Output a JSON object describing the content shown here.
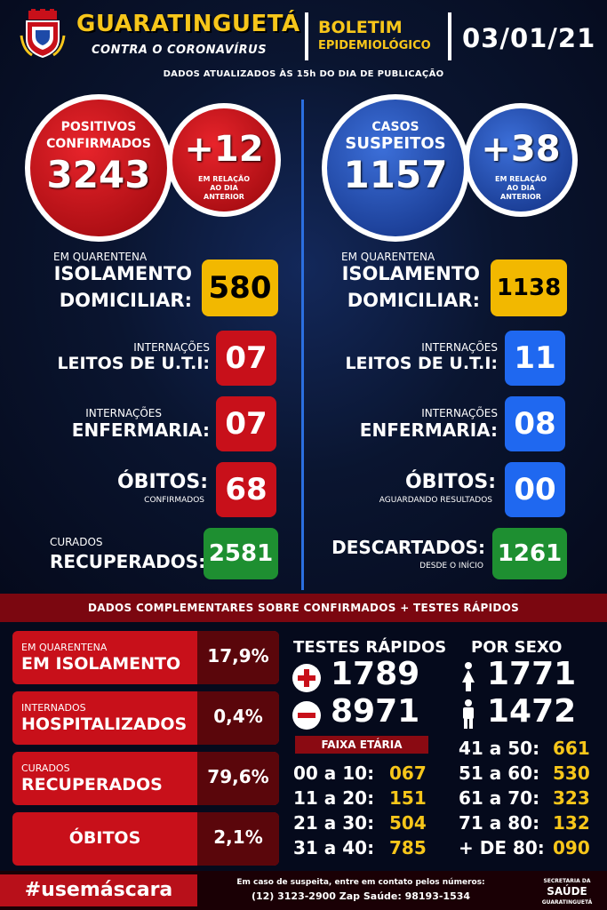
{
  "header": {
    "city": "GUARATINGUETÁ",
    "subtitle": "CONTRA O CORONAVÍRUS",
    "bulletin_line1": "BOLETIM",
    "bulletin_line2": "EPIDEMIOLÓGICO",
    "date": "03/01/21",
    "updated": "DADOS ATUALIZADOS ÀS 15h DO DIA DE PUBLICAÇÃO"
  },
  "confirmed": {
    "label1": "POSITIVOS",
    "label2": "CONFIRMADOS",
    "value": "3243",
    "delta": "+12",
    "delta_note1": "EM RELAÇÃO",
    "delta_note2": "AO DIA",
    "delta_note3": "ANTERIOR",
    "quarantine_small": "EM QUARENTENA",
    "quarantine_l1": "ISOLAMENTO",
    "quarantine_l2": "DOMICILIAR:",
    "quarantine_value": "580",
    "icu_small": "INTERNAÇÕES",
    "icu_label": "LEITOS DE U.T.I:",
    "icu_value": "07",
    "ward_small": "INTERNAÇÕES",
    "ward_label": "ENFERMARIA:",
    "ward_value": "07",
    "deaths_label": "ÓBITOS:",
    "deaths_small": "CONFIRMADOS",
    "deaths_value": "68",
    "cured_small": "CURADOS",
    "cured_label": "RECUPERADOS:",
    "cured_value": "2581"
  },
  "suspected": {
    "label1": "CASOS",
    "label2": "SUSPEITOS",
    "value": "1157",
    "delta": "+38",
    "delta_note1": "EM RELAÇÃO",
    "delta_note2": "AO DIA",
    "delta_note3": "ANTERIOR",
    "quarantine_small": "EM QUARENTENA",
    "quarantine_l1": "ISOLAMENTO",
    "quarantine_l2": "DOMICILIAR:",
    "quarantine_value": "1138",
    "icu_small": "INTERNAÇÕES",
    "icu_label": "LEITOS DE U.T.I:",
    "icu_value": "11",
    "ward_small": "INTERNAÇÕES",
    "ward_label": "ENFERMARIA:",
    "ward_value": "08",
    "deaths_label": "ÓBITOS:",
    "deaths_small": "AGUARDANDO RESULTADOS",
    "deaths_value": "00",
    "discarded_label": "DESCARTADOS:",
    "discarded_small": "DESDE O INÍCIO",
    "discarded_value": "1261"
  },
  "complementary": {
    "title": "DADOS COMPLEMENTARES SOBRE CONFIRMADOS + TESTES RÁPIDOS",
    "rows": [
      {
        "small": "EM QUARENTENA",
        "label": "EM ISOLAMENTO",
        "pct": "17,9%"
      },
      {
        "small": "INTERNADOS",
        "label": "HOSPITALIZADOS",
        "pct": "0,4%"
      },
      {
        "small": "CURADOS",
        "label": "RECUPERADOS",
        "pct": "79,6%"
      },
      {
        "small": "",
        "label": "ÓBITOS",
        "pct": "2,1%"
      }
    ]
  },
  "rapid_tests": {
    "title": "TESTES RÁPIDOS",
    "positive": "1789",
    "negative": "8971"
  },
  "by_sex": {
    "title": "POR SEXO",
    "female": "1771",
    "male": "1472"
  },
  "age": {
    "title": "FAIXA ETÁRIA",
    "left": [
      {
        "range": "00 a 10:",
        "value": "067"
      },
      {
        "range": "11 a 20:",
        "value": "151"
      },
      {
        "range": "21 a 30:",
        "value": "504"
      },
      {
        "range": "31 a 40:",
        "value": "785"
      }
    ],
    "right": [
      {
        "range": "41 a 50:",
        "value": "661"
      },
      {
        "range": "51 a 60:",
        "value": "530"
      },
      {
        "range": "61 a 70:",
        "value": "323"
      },
      {
        "range": "71 a 80:",
        "value": "132"
      },
      {
        "range": "+ DE 80:",
        "value": "090"
      }
    ]
  },
  "footer": {
    "hashtag": "#usemáscara",
    "contact1": "Em caso de suspeita, entre em contato pelos números:",
    "contact2": "(12) 3123-2900 Zap Saúde: 98193-1534",
    "logo_small": "SECRETARIA DA",
    "logo_big": "SAÚDE",
    "logo_city": "GUARATINGUETÁ"
  },
  "colors": {
    "yellow": "#f2b800",
    "red": "#c8101a",
    "blue": "#1f68f0",
    "green": "#1e8f31"
  }
}
